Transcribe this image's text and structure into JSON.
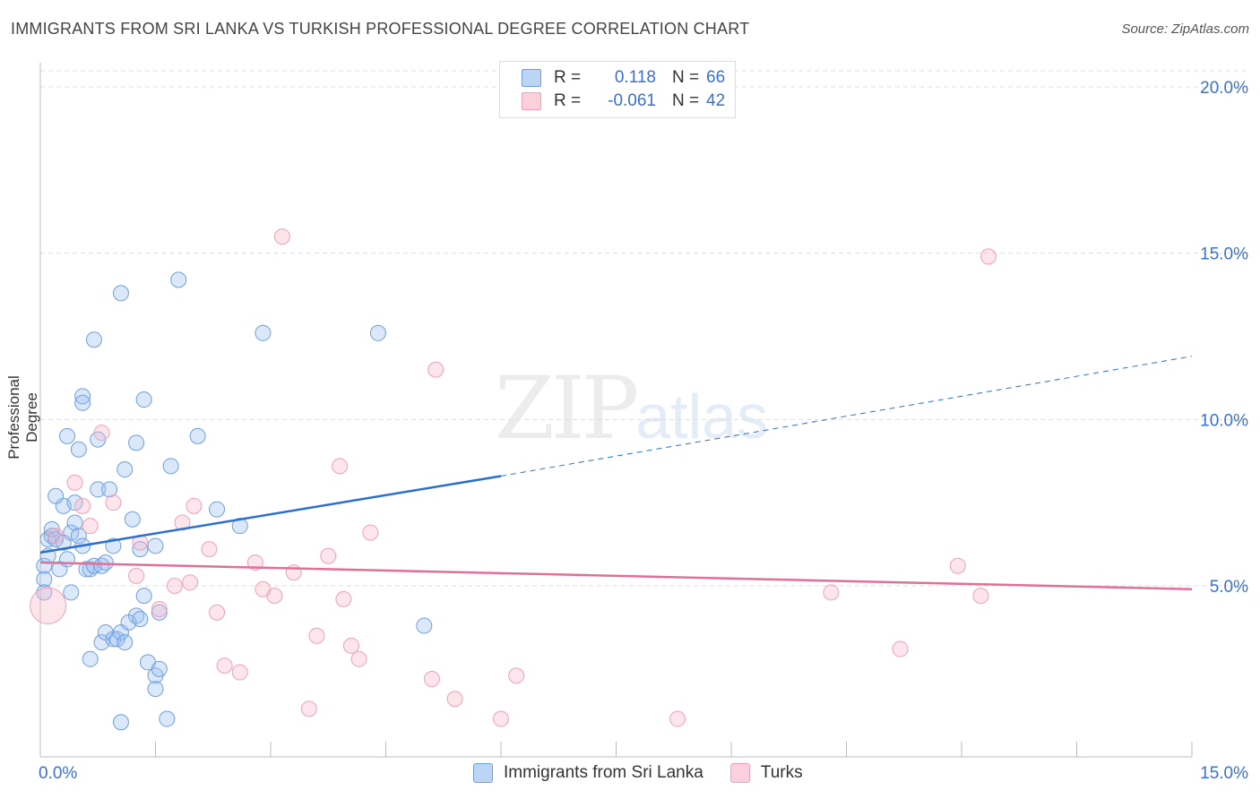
{
  "header": {
    "title": "IMMIGRANTS FROM SRI LANKA VS TURKISH PROFESSIONAL DEGREE CORRELATION CHART",
    "source": "Source: ZipAtlas.com"
  },
  "watermark": {
    "zip": "ZIP",
    "atlas": "atlas"
  },
  "legend": {
    "rows": [
      {
        "r_label": "R =",
        "r_value": "0.118",
        "n_label": "N =",
        "n_value": "66"
      },
      {
        "r_label": "R =",
        "r_value": "-0.061",
        "n_label": "N =",
        "n_value": "42"
      }
    ]
  },
  "chart_data": {
    "type": "scatter",
    "title": "IMMIGRANTS FROM SRI LANKA VS TURKISH PROFESSIONAL DEGREE CORRELATION CHART",
    "xlabel": "",
    "ylabel": "Professional Degree",
    "xlim": [
      0,
      15
    ],
    "ylim": [
      0,
      20.5
    ],
    "x_tick_labels": [
      "0.0%",
      "15.0%"
    ],
    "y_ticks": [
      5,
      10,
      15,
      20
    ],
    "y_tick_labels": [
      "5.0%",
      "10.0%",
      "15.0%",
      "20.0%"
    ],
    "colors": {
      "blue": "#6f9fe0",
      "blue_line": "#2a6fd0",
      "pink": "#f0a0b8",
      "pink_line": "#e07098"
    },
    "series": [
      {
        "name": "Immigrants from Sri Lanka",
        "r": 0.118,
        "n": 66,
        "trend": {
          "x0": 0,
          "y0": 6.0,
          "x1": 6.0,
          "y1": 8.3,
          "x_dash_end": 15,
          "y_dash_end": 11.9
        },
        "points": [
          [
            0.05,
            5.6
          ],
          [
            0.05,
            5.2
          ],
          [
            0.05,
            4.8
          ],
          [
            0.1,
            5.9
          ],
          [
            0.1,
            6.4
          ],
          [
            0.15,
            6.5
          ],
          [
            0.15,
            6.7
          ],
          [
            0.2,
            6.4
          ],
          [
            0.25,
            5.5
          ],
          [
            0.3,
            6.3
          ],
          [
            0.3,
            7.4
          ],
          [
            0.2,
            7.7
          ],
          [
            0.35,
            5.8
          ],
          [
            0.4,
            6.6
          ],
          [
            0.4,
            4.8
          ],
          [
            0.45,
            6.9
          ],
          [
            0.45,
            7.5
          ],
          [
            0.5,
            6.5
          ],
          [
            0.55,
            6.2
          ],
          [
            0.6,
            5.5
          ],
          [
            0.65,
            5.5
          ],
          [
            0.7,
            5.6
          ],
          [
            0.75,
            7.9
          ],
          [
            0.8,
            5.6
          ],
          [
            0.85,
            5.7
          ],
          [
            0.95,
            6.2
          ],
          [
            0.9,
            7.9
          ],
          [
            1.1,
            8.5
          ],
          [
            1.2,
            7.0
          ],
          [
            1.25,
            9.3
          ],
          [
            1.3,
            6.1
          ],
          [
            1.35,
            4.7
          ],
          [
            1.5,
            6.2
          ],
          [
            1.55,
            4.2
          ],
          [
            1.7,
            8.6
          ],
          [
            2.05,
            9.5
          ],
          [
            2.3,
            7.3
          ],
          [
            2.6,
            6.8
          ],
          [
            0.35,
            9.5
          ],
          [
            0.5,
            9.1
          ],
          [
            0.55,
            10.7
          ],
          [
            0.55,
            10.5
          ],
          [
            0.7,
            12.4
          ],
          [
            0.75,
            9.4
          ],
          [
            1.05,
            13.8
          ],
          [
            1.35,
            10.6
          ],
          [
            1.8,
            14.2
          ],
          [
            2.9,
            12.6
          ],
          [
            4.4,
            12.6
          ],
          [
            5.0,
            3.8
          ],
          [
            0.65,
            2.8
          ],
          [
            0.8,
            3.3
          ],
          [
            0.85,
            3.6
          ],
          [
            0.95,
            3.4
          ],
          [
            1.0,
            3.4
          ],
          [
            1.05,
            3.6
          ],
          [
            1.1,
            3.3
          ],
          [
            1.15,
            3.9
          ],
          [
            1.25,
            4.1
          ],
          [
            1.3,
            4.0
          ],
          [
            1.4,
            2.7
          ],
          [
            1.5,
            2.3
          ],
          [
            1.55,
            2.5
          ],
          [
            1.5,
            1.9
          ],
          [
            1.65,
            1.0
          ],
          [
            1.05,
            0.9
          ]
        ]
      },
      {
        "name": "Turks",
        "r": -0.061,
        "n": 42,
        "trend": {
          "x0": 0,
          "y0": 5.7,
          "x1": 15,
          "y1": 4.9
        },
        "points": [
          [
            0.2,
            6.5
          ],
          [
            0.45,
            8.1
          ],
          [
            0.55,
            7.4
          ],
          [
            0.65,
            6.8
          ],
          [
            0.8,
            9.6
          ],
          [
            0.95,
            7.5
          ],
          [
            1.3,
            6.3
          ],
          [
            1.25,
            5.3
          ],
          [
            1.55,
            4.3
          ],
          [
            1.75,
            5.0
          ],
          [
            1.85,
            6.9
          ],
          [
            1.95,
            5.1
          ],
          [
            2.0,
            7.4
          ],
          [
            2.2,
            6.1
          ],
          [
            2.3,
            4.2
          ],
          [
            2.4,
            2.6
          ],
          [
            2.6,
            2.4
          ],
          [
            2.8,
            5.7
          ],
          [
            2.9,
            4.9
          ],
          [
            3.05,
            4.7
          ],
          [
            3.3,
            5.4
          ],
          [
            3.5,
            1.3
          ],
          [
            3.6,
            3.5
          ],
          [
            3.75,
            5.9
          ],
          [
            3.9,
            8.6
          ],
          [
            3.95,
            4.6
          ],
          [
            4.05,
            3.2
          ],
          [
            4.15,
            2.8
          ],
          [
            4.3,
            6.6
          ],
          [
            5.1,
            2.2
          ],
          [
            5.15,
            11.5
          ],
          [
            5.4,
            1.6
          ],
          [
            6.0,
            1.0
          ],
          [
            6.2,
            2.3
          ],
          [
            3.15,
            15.5
          ],
          [
            8.3,
            1.0
          ],
          [
            10.3,
            4.8
          ],
          [
            11.2,
            3.1
          ],
          [
            11.95,
            5.6
          ],
          [
            12.25,
            4.7
          ],
          [
            12.35,
            14.9
          ],
          [
            0.1,
            4.4
          ]
        ]
      }
    ]
  },
  "bottom_legend": {
    "series1": "Immigrants from Sri Lanka",
    "series2": "Turks"
  }
}
